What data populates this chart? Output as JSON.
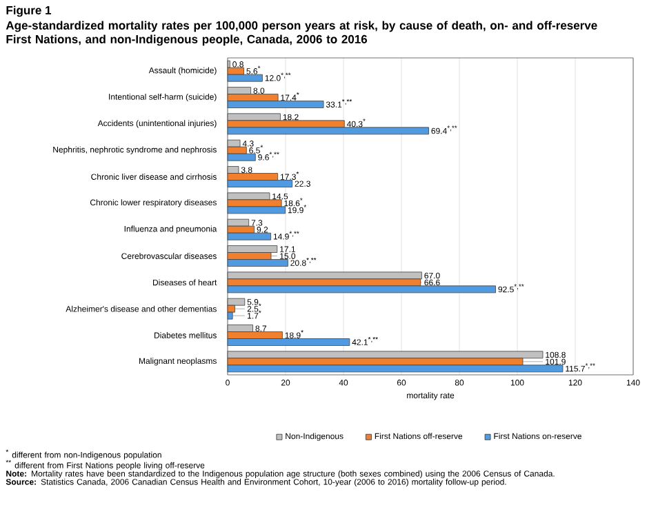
{
  "chart_data": {
    "type": "bar",
    "orientation": "horizontal",
    "title": "Figure 1",
    "subtitle": "Age-standardized mortality rates per 100,000 person years at risk, by cause of death, on- and off-reserve First Nations, and non-Indigenous people, Canada, 2006 to 2016",
    "xlabel": "mortality rate",
    "categories": [
      "Assault (homicide)",
      "Intentional self-harm (suicide)",
      "Accidents (unintentional injuries)",
      "Nephritis, nephrotic syndrome and nephrosis",
      "Chronic liver disease and cirrhosis",
      "Chronic lower respiratory diseases",
      "Influenza and pneumonia",
      "Cerebrovascular diseases",
      "Diseases of heart",
      "Alzheimer's disease and other dementias",
      "Diabetes mellitus",
      "Malignant neoplasms"
    ],
    "series": [
      {
        "name": "Non-Indigenous",
        "color": "#c0c0c0",
        "values": [
          0.8,
          8.0,
          18.2,
          4.3,
          3.8,
          14.5,
          7.3,
          17.1,
          67.0,
          5.9,
          8.7,
          108.8
        ],
        "value_labels": [
          "0.8",
          "8.0",
          "18.2",
          "4.3",
          "3.8",
          "14.5",
          "7.3",
          "17.1",
          "67.0",
          "5.9",
          "8.7",
          "108.8"
        ]
      },
      {
        "name": "First Nations off-reserve",
        "color": "#f07f2e",
        "values": [
          5.6,
          17.4,
          40.3,
          6.5,
          17.3,
          18.6,
          9.2,
          15.0,
          66.6,
          2.5,
          18.9,
          101.9
        ],
        "value_labels": [
          "5.6$^{*}$",
          "17.4$^{*}$",
          "40.3$^{*}$",
          "6.5$^{*}$",
          "17.3$^{*}$",
          "18.6$^{*}$",
          "9.2",
          "15.0",
          "66.6",
          "2.5$^{*}$",
          "18.9$^{*}$",
          "101.9"
        ]
      },
      {
        "name": "First Nations on-reserve",
        "color": "#4f9ae0",
        "values": [
          12.0,
          33.1,
          69.4,
          9.6,
          22.3,
          19.9,
          14.9,
          20.8,
          92.5,
          1.7,
          42.1,
          115.7
        ],
        "value_labels": [
          "12.0$^{*,**}$",
          "33.1$^{*,**}$",
          "69.4$^{*,**}$",
          "9.6$^{*,**}$",
          "22.3",
          "19.9$^{*}$",
          "14.9$^{*,**}$",
          "20.8$^{*,**}$",
          "92.5$^{*,**}$",
          "1.7$^{*}$",
          "42.1$^{*,**}$",
          "115.7$^{*,**}$"
        ]
      }
    ],
    "xlim": [
      0,
      140
    ],
    "xticks": [
      0,
      20,
      40,
      60,
      80,
      100,
      120,
      140
    ],
    "grid": "x",
    "legend": "bottom",
    "annotations": [
      "$^{*}$ different from non-Indigenous population",
      "$^{**}$ different from First Nations people living off-reserve",
      "**Note:** Mortality rates have been standardized to the Indigenous population age structure (both sexes combined) using the 2006 Census of Canada.",
      "**Source:** Statistics Canada, 2006 Canadian Census Health and Environment Cohort, 10-year (2006 to 2016) mortality follow-up period."
    ]
  }
}
